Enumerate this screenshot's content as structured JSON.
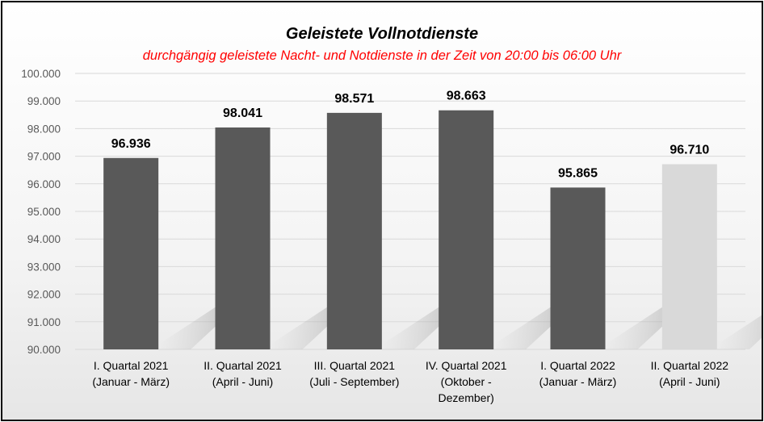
{
  "chart_data": {
    "type": "bar",
    "title": "Geleistete Vollnotdienste",
    "subtitle": "durchgängig geleistete Nacht- und Notdienste in der Zeit von 20:00 bis 06:00 Uhr",
    "categories": [
      [
        "I. Quartal 2021",
        "(Januar - März)"
      ],
      [
        "II. Quartal 2021",
        "(April - Juni)"
      ],
      [
        "III. Quartal 2021",
        "(Juli - September)"
      ],
      [
        "IV. Quartal 2021",
        "(Oktober -",
        "Dezember)"
      ],
      [
        "I. Quartal 2022",
        "(Januar - März)"
      ],
      [
        "II. Quartal 2022",
        "(April - Juni)"
      ]
    ],
    "values": [
      96936,
      98041,
      98571,
      98663,
      95865,
      96710
    ],
    "data_labels": [
      "96.936",
      "98.041",
      "98.571",
      "98.663",
      "95.865",
      "96.710"
    ],
    "bar_colors": [
      "#595959",
      "#595959",
      "#595959",
      "#595959",
      "#595959",
      "#d9d9d9"
    ],
    "ylim": [
      90000,
      100000
    ],
    "yticks": [
      90000,
      91000,
      92000,
      93000,
      94000,
      95000,
      96000,
      97000,
      98000,
      99000,
      100000
    ],
    "ytick_labels": [
      "90.000",
      "91.000",
      "92.000",
      "93.000",
      "94.000",
      "95.000",
      "96.000",
      "97.000",
      "98.000",
      "99.000",
      "100.000"
    ],
    "grid": true,
    "grid_color": "#d9d9d9",
    "legend": "none"
  }
}
